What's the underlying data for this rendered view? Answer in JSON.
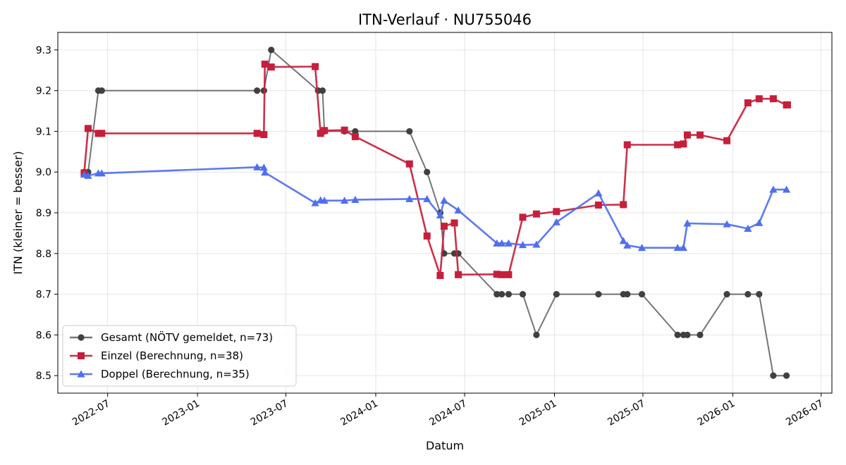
{
  "chart_data": {
    "type": "line",
    "title": "ITN-Verlauf · NU755046",
    "xlabel": "Datum",
    "ylabel": "ITN  (kleiner = besser)",
    "xlim": [
      "2022-03-21",
      "2026-07-23"
    ],
    "ylim": [
      8.457,
      9.343
    ],
    "y_ticks": [
      8.5,
      8.6,
      8.7,
      8.8,
      8.9,
      9.0,
      9.1,
      9.2,
      9.3
    ],
    "y_tick_labels": [
      "8.5",
      "8.6",
      "8.7",
      "8.8",
      "8.9",
      "9.0",
      "9.1",
      "9.2",
      "9.3"
    ],
    "x_ticks": [
      "2022-07-01",
      "2023-01-01",
      "2023-07-01",
      "2024-01-01",
      "2024-07-01",
      "2025-01-01",
      "2025-07-01",
      "2026-01-01",
      "2026-07-01"
    ],
    "x_tick_labels": [
      "2022-07",
      "2023-01",
      "2023-07",
      "2024-01",
      "2024-07",
      "2025-01",
      "2025-07",
      "2026-01",
      "2026-07"
    ],
    "grid": true,
    "legend_position": "lower-left",
    "series": [
      {
        "name": "Gesamt (NÖTV gemeldet, n=73)",
        "color": "#404040",
        "marker": "circle",
        "points": [
          [
            "2022-05-14",
            9.0
          ],
          [
            "2022-05-22",
            9.0
          ],
          [
            "2022-06-12",
            9.2
          ],
          [
            "2022-06-19",
            9.2
          ],
          [
            "2023-05-03",
            9.2
          ],
          [
            "2023-05-17",
            9.2
          ],
          [
            "2023-06-01",
            9.3
          ],
          [
            "2023-09-05",
            9.2
          ],
          [
            "2023-09-14",
            9.2
          ],
          [
            "2023-09-18",
            9.1
          ],
          [
            "2023-10-29",
            9.1
          ],
          [
            "2023-11-20",
            9.1
          ],
          [
            "2024-03-10",
            9.1
          ],
          [
            "2024-04-15",
            9.0
          ],
          [
            "2024-05-12",
            8.9
          ],
          [
            "2024-05-20",
            8.8
          ],
          [
            "2024-06-10",
            8.8
          ],
          [
            "2024-06-18",
            8.8
          ],
          [
            "2024-09-05",
            8.7
          ],
          [
            "2024-09-15",
            8.7
          ],
          [
            "2024-09-29",
            8.7
          ],
          [
            "2024-10-28",
            8.7
          ],
          [
            "2024-11-25",
            8.6
          ],
          [
            "2025-01-05",
            8.7
          ],
          [
            "2025-04-01",
            8.7
          ],
          [
            "2025-05-22",
            8.7
          ],
          [
            "2025-05-30",
            8.7
          ],
          [
            "2025-06-29",
            8.7
          ],
          [
            "2025-09-10",
            8.6
          ],
          [
            "2025-09-22",
            8.6
          ],
          [
            "2025-09-30",
            8.6
          ],
          [
            "2025-10-26",
            8.6
          ],
          [
            "2025-12-20",
            8.7
          ],
          [
            "2026-02-01",
            8.7
          ],
          [
            "2026-02-24",
            8.7
          ],
          [
            "2026-03-25",
            8.5
          ],
          [
            "2026-04-21",
            8.5
          ]
        ]
      },
      {
        "name": "Einzel (Berechnung, n=38)",
        "color": "#c61f3b",
        "marker": "square",
        "points": [
          [
            "2022-05-14",
            8.998
          ],
          [
            "2022-05-22",
            9.107
          ],
          [
            "2022-06-12",
            9.095
          ],
          [
            "2022-06-19",
            9.095
          ],
          [
            "2023-05-03",
            9.095
          ],
          [
            "2023-05-17",
            9.092
          ],
          [
            "2023-05-19",
            9.265
          ],
          [
            "2023-06-01",
            9.258
          ],
          [
            "2023-08-30",
            9.259
          ],
          [
            "2023-09-10",
            9.095
          ],
          [
            "2023-09-18",
            9.102
          ],
          [
            "2023-10-29",
            9.103
          ],
          [
            "2023-11-20",
            9.087
          ],
          [
            "2024-03-10",
            9.02
          ],
          [
            "2024-04-15",
            8.843
          ],
          [
            "2024-05-12",
            8.746
          ],
          [
            "2024-05-20",
            8.867
          ],
          [
            "2024-06-10",
            8.875
          ],
          [
            "2024-06-18",
            8.748
          ],
          [
            "2024-09-05",
            8.749
          ],
          [
            "2024-09-15",
            8.748
          ],
          [
            "2024-09-29",
            8.748
          ],
          [
            "2024-10-28",
            8.889
          ],
          [
            "2024-11-25",
            8.897
          ],
          [
            "2025-01-05",
            8.903
          ],
          [
            "2025-04-01",
            8.919
          ],
          [
            "2025-05-22",
            8.92
          ],
          [
            "2025-05-30",
            9.067
          ],
          [
            "2025-09-10",
            9.067
          ],
          [
            "2025-09-22",
            9.069
          ],
          [
            "2025-09-30",
            9.091
          ],
          [
            "2025-10-26",
            9.091
          ],
          [
            "2025-12-20",
            9.077
          ],
          [
            "2026-02-01",
            9.17
          ],
          [
            "2026-02-24",
            9.18
          ],
          [
            "2026-03-25",
            9.18
          ],
          [
            "2026-04-21",
            9.165
          ],
          [
            "2026-04-23",
            9.165
          ]
        ]
      },
      {
        "name": "Doppel (Berechnung, n=35)",
        "color": "#4f6ff0",
        "marker": "triangle",
        "points": [
          [
            "2022-05-14",
            8.994
          ],
          [
            "2022-05-22",
            8.991
          ],
          [
            "2022-06-12",
            8.997
          ],
          [
            "2022-06-19",
            8.997
          ],
          [
            "2023-05-03",
            9.012
          ],
          [
            "2023-05-17",
            9.011
          ],
          [
            "2023-05-19",
            8.999
          ],
          [
            "2023-08-30",
            8.924
          ],
          [
            "2023-09-10",
            8.931
          ],
          [
            "2023-09-18",
            8.93
          ],
          [
            "2023-10-29",
            8.93
          ],
          [
            "2023-11-20",
            8.932
          ],
          [
            "2024-03-10",
            8.934
          ],
          [
            "2024-04-15",
            8.934
          ],
          [
            "2024-05-12",
            8.894
          ],
          [
            "2024-05-20",
            8.93
          ],
          [
            "2024-06-18",
            8.906
          ],
          [
            "2024-09-05",
            8.825
          ],
          [
            "2024-09-15",
            8.825
          ],
          [
            "2024-09-29",
            8.825
          ],
          [
            "2024-10-28",
            8.821
          ],
          [
            "2024-11-25",
            8.822
          ],
          [
            "2025-01-05",
            8.877
          ],
          [
            "2025-04-01",
            8.948
          ],
          [
            "2025-05-22",
            8.831
          ],
          [
            "2025-05-30",
            8.82
          ],
          [
            "2025-06-29",
            8.814
          ],
          [
            "2025-09-10",
            8.814
          ],
          [
            "2025-09-22",
            8.814
          ],
          [
            "2025-09-30",
            8.874
          ],
          [
            "2025-12-20",
            8.872
          ],
          [
            "2026-02-01",
            8.861
          ],
          [
            "2026-02-24",
            8.875
          ],
          [
            "2026-03-25",
            8.957
          ],
          [
            "2026-04-21",
            8.957
          ]
        ]
      }
    ]
  }
}
